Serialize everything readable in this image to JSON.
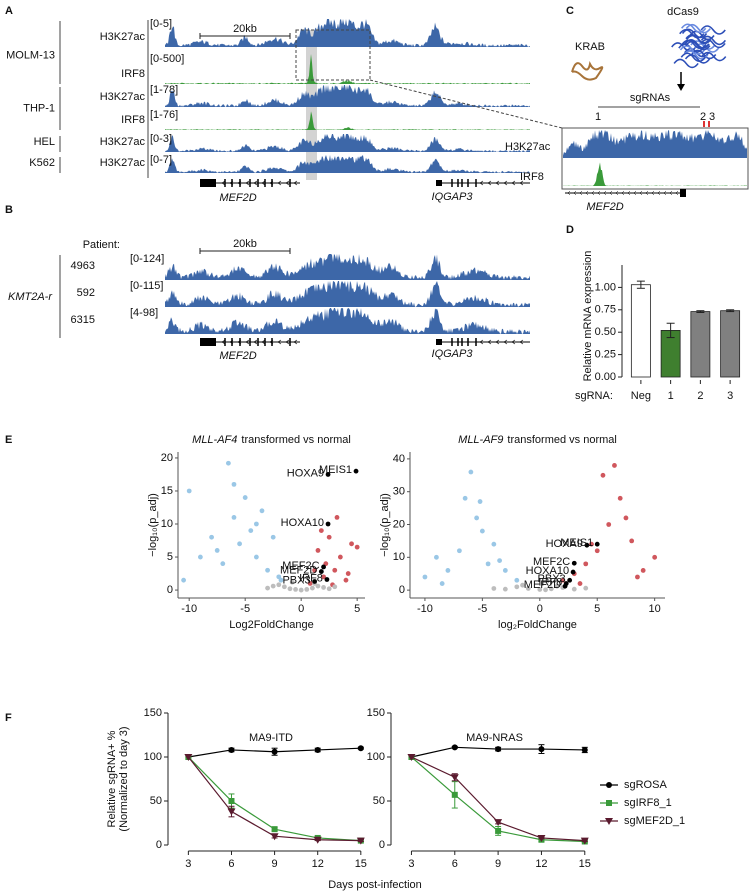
{
  "panels": {
    "A": {
      "label": "A",
      "scale_bar": "20kb",
      "tracks": [
        {
          "cell": "MOLM-13",
          "mark": "H3K27ac",
          "range": "[0-5]"
        },
        {
          "mark": "IRF8",
          "range": "[0-500]"
        },
        {
          "cell": "THP-1",
          "mark": "H3K27ac",
          "range": "[1-78]"
        },
        {
          "mark": "IRF8",
          "range": "[1-76]"
        },
        {
          "cell": "HEL",
          "mark": "H3K27ac",
          "range": "[0-3]"
        },
        {
          "cell": "K562",
          "mark": "H3K27ac",
          "range": "[0-7]"
        }
      ],
      "genes": [
        "MEF2D",
        "IQGAP3"
      ]
    },
    "B": {
      "label": "B",
      "header": "Patient:",
      "group": "KMT2A-r",
      "scale_bar": "20kb",
      "tracks": [
        {
          "patient": "4963",
          "range": "[0-124]"
        },
        {
          "patient": "592",
          "range": "[0-115]"
        },
        {
          "patient": "6315",
          "range": "[4-98]"
        }
      ],
      "genes": [
        "MEF2D",
        "IQGAP3"
      ]
    },
    "C": {
      "label": "C",
      "proteins": [
        "dCas9",
        "KRAB"
      ],
      "guides_label": "sgRNAs",
      "guides": [
        "1",
        "2",
        "3"
      ],
      "tracks": [
        "H3K27ac",
        "IRF8"
      ],
      "gene": "MEF2D"
    }
  },
  "chart_data": [
    {
      "type": "bar",
      "panel": "D",
      "y_label": "Relative mRNA expression",
      "x_prefix": "sgRNA:",
      "categories": [
        "Neg",
        "1",
        "2",
        "3"
      ],
      "values": [
        1.03,
        0.52,
        0.73,
        0.74
      ],
      "errors": [
        0.04,
        0.08,
        0.01,
        0.01
      ],
      "colors": [
        "#ffffff",
        "#3f7f2f",
        "#808080",
        "#808080"
      ],
      "ylim": [
        0,
        1.25
      ],
      "yticks": [
        {
          "value": 0,
          "label": "0.00"
        },
        {
          "value": 0.25,
          "label": "0.25"
        },
        {
          "value": 0.5,
          "label": "0.50"
        },
        {
          "value": 0.75,
          "label": "0.75"
        },
        {
          "value": 1,
          "label": "1.00"
        }
      ]
    },
    {
      "type": "scatter",
      "panel": "E",
      "title_emphasis": "MLL-AF4",
      "title_rest": "transformed vs normal",
      "x_label": "Log2FoldChange",
      "y_label": "−log₁₀(p_adj)",
      "xlim": [
        -11,
        5.7
      ],
      "ylim": [
        -1.2,
        20.9
      ],
      "xticks": [
        -10,
        -5,
        0,
        5
      ],
      "yticks": [
        0,
        5,
        10,
        15,
        20
      ],
      "series": [
        {
          "color": "#9ac7e6",
          "x": [
            -10.5,
            -10,
            -9,
            -8,
            -7,
            -6.5,
            -6,
            -5.5,
            -5,
            -4.5,
            -4,
            -3.5,
            -3,
            -2.5,
            -2,
            -6,
            -4,
            -1.8,
            -7.5
          ],
          "y": [
            1.5,
            15,
            5,
            8,
            4,
            19.2,
            11,
            7,
            14,
            9,
            5,
            12,
            3,
            8,
            2,
            16,
            10,
            1.5,
            6
          ]
        },
        {
          "color": "#d0575d",
          "x": [
            0.8,
            1.2,
            1.5,
            2,
            2.5,
            3,
            3.5,
            4,
            4.5,
            1.8,
            2.8,
            3.2,
            4.2,
            5,
            2.2
          ],
          "y": [
            1,
            3,
            6,
            2,
            8,
            3,
            5,
            1.5,
            7,
            9,
            0.8,
            11,
            2.5,
            6.5,
            4
          ]
        },
        {
          "color": "#bdbdbd",
          "x": [
            -3,
            -2,
            -1.5,
            -1,
            -0.5,
            0,
            0.5,
            1,
            1.5,
            2,
            2.5,
            3,
            -2.5,
            1.2,
            -0.8
          ],
          "y": [
            0.3,
            0.8,
            0.5,
            0.2,
            0.1,
            0,
            0.1,
            0.3,
            0.6,
            0.4,
            0.2,
            0.5,
            0.6,
            1,
            1.2
          ]
        }
      ],
      "points": [
        {
          "label": "HOXA9",
          "x": 2.4,
          "y": 17.5
        },
        {
          "label": "MEIS1",
          "x": 4.9,
          "y": 18
        },
        {
          "label": "HOXA10",
          "x": 2.4,
          "y": 10
        },
        {
          "label": "MEF2C",
          "x": 2,
          "y": 3.5
        },
        {
          "label": "MEF2D",
          "x": 1.8,
          "y": 2.8
        },
        {
          "label": "IRF8",
          "x": 2.3,
          "y": 1.6
        },
        {
          "label": "PBX3",
          "x": 1.2,
          "y": 1.3
        }
      ]
    },
    {
      "type": "scatter",
      "title_emphasis": "MLL-AF9",
      "title_rest": "transformed vs normal",
      "x_label": "log₂FoldChange",
      "y_label": "−log₁₀(p_adj)",
      "xlim": [
        -11.3,
        10.9
      ],
      "ylim": [
        -2.4,
        42.1
      ],
      "xticks": [
        -10,
        -5,
        0,
        5,
        10
      ],
      "yticks": [
        0,
        10,
        20,
        30,
        40
      ],
      "series": [
        {
          "color": "#9ac7e6",
          "x": [
            -10,
            -9,
            -8,
            -7,
            -6,
            -5.5,
            -5,
            -4.5,
            -4,
            -3,
            -2,
            -6.5,
            -5.2,
            -3.5,
            -8.5
          ],
          "y": [
            4,
            10,
            6,
            12,
            36,
            22,
            18,
            8,
            14,
            6,
            3,
            28,
            27,
            9,
            2
          ]
        },
        {
          "color": "#d0575d",
          "x": [
            2,
            3,
            4,
            5,
            6,
            7,
            8,
            9,
            10,
            3.5,
            5.5,
            6.5,
            7.5,
            4.5,
            8.5
          ],
          "y": [
            3,
            5,
            8,
            12,
            20,
            28,
            15,
            6,
            10,
            2,
            35,
            38,
            22,
            14,
            4
          ]
        },
        {
          "color": "#bdbdbd",
          "x": [
            -4,
            -3,
            -2,
            -1,
            0,
            1,
            2,
            3,
            4,
            -1.5,
            1.5,
            0.5
          ],
          "y": [
            0.5,
            0.3,
            1,
            0.5,
            0.2,
            0.4,
            0.8,
            0.3,
            0.6,
            1.5,
            1.2,
            0.1
          ]
        }
      ],
      "points": [
        {
          "label": "HOXA9",
          "x": 4.1,
          "y": 13.7
        },
        {
          "label": "MEIS1",
          "x": 5,
          "y": 14
        },
        {
          "label": "MEF2C",
          "x": 3,
          "y": 8.2
        },
        {
          "label": "HOXA10",
          "x": 2.9,
          "y": 5.5
        },
        {
          "label": "PBX3",
          "x": 2.6,
          "y": 3
        },
        {
          "label": "IRF8",
          "x": 2.3,
          "y": 2
        },
        {
          "label": "MEF2D",
          "x": 2.2,
          "y": 1.2
        }
      ]
    },
    {
      "type": "line",
      "panel": "F",
      "title": "MA9-ITD",
      "y_label": [
        "Relative sgRNA+ %",
        "(Normalized to day 3)"
      ],
      "x_label": "Days post-infection",
      "x": [
        3,
        6,
        9,
        12,
        15
      ],
      "xlim": [
        2,
        15.5
      ],
      "xticks": [
        3,
        6,
        9,
        12,
        15
      ],
      "ylim": [
        0,
        150
      ],
      "yticks": [
        0,
        50,
        100,
        150
      ],
      "series": [
        {
          "color": "#000000",
          "marker": "circle",
          "values": [
            100,
            108,
            106,
            108,
            110
          ],
          "errors": [
            0,
            2,
            4,
            2,
            1
          ]
        },
        {
          "color": "#3a9a3a",
          "marker": "square",
          "values": [
            100,
            50,
            18,
            8,
            5
          ],
          "errors": [
            0,
            8,
            2,
            1,
            1
          ]
        },
        {
          "color": "#5a1a2e",
          "marker": "triangle",
          "values": [
            100,
            38,
            10,
            6,
            5
          ],
          "errors": [
            0,
            6,
            2,
            1,
            1
          ]
        }
      ]
    },
    {
      "type": "line",
      "title": "MA9-NRAS",
      "legend": "right",
      "x": [
        3,
        6,
        9,
        12,
        15
      ],
      "xlim": [
        2,
        15.5
      ],
      "xticks": [
        3,
        6,
        9,
        12,
        15
      ],
      "ylim": [
        0,
        150
      ],
      "yticks": [
        0,
        50,
        100,
        150
      ],
      "series": [
        {
          "name": "sgROSA",
          "color": "#000000",
          "marker": "circle",
          "values": [
            100,
            111,
            109,
            109,
            108
          ],
          "errors": [
            0,
            1,
            2,
            5,
            3
          ]
        },
        {
          "name": "sgIRF8_1",
          "color": "#3a9a3a",
          "marker": "square",
          "values": [
            100,
            57,
            16,
            6,
            4
          ],
          "errors": [
            0,
            15,
            5,
            2,
            1
          ]
        },
        {
          "name": "sgMEF2D_1",
          "color": "#5a1a2e",
          "marker": "triangle",
          "values": [
            100,
            77,
            26,
            8,
            5
          ],
          "errors": [
            0,
            4,
            2,
            1,
            1
          ]
        }
      ]
    }
  ]
}
